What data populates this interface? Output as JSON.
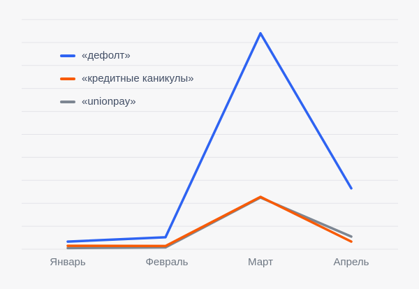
{
  "chart_data": {
    "type": "line",
    "title": "",
    "xlabel": "",
    "ylabel": "",
    "categories": [
      "Январь",
      "Февраль",
      "Март",
      "Апрель"
    ],
    "series": [
      {
        "name": "«дефолт»",
        "color": "#2e63f2",
        "values": [
          0.33,
          0.52,
          9.4,
          2.65
        ]
      },
      {
        "name": "«кредитные каникулы»",
        "color": "#f85a05",
        "values": [
          0.15,
          0.14,
          2.28,
          0.33
        ]
      },
      {
        "name": "«unionpay»",
        "color": "#7d8692",
        "values": [
          0.05,
          0.08,
          2.25,
          0.55
        ]
      }
    ],
    "ylim": [
      0,
      10
    ],
    "gridline_count": 11,
    "grid": "horizontal-only",
    "y_tick_labels_visible": false,
    "legend_position": "top-left"
  },
  "colors": {
    "background": "#f7f7f8",
    "gridline": "#e4e4e9",
    "legend_text": "#434f66",
    "axis_text": "#6e7783"
  }
}
